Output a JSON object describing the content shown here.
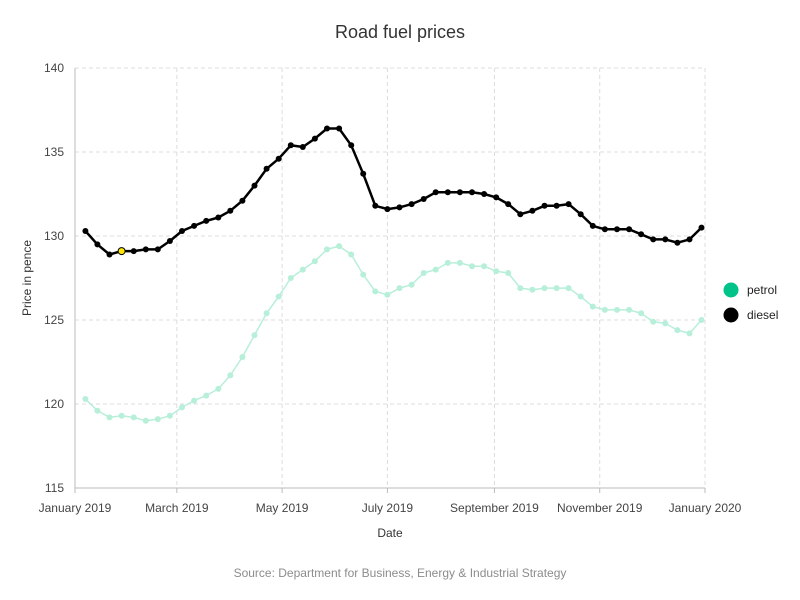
{
  "chart_data": {
    "type": "line",
    "title": "Road fuel prices",
    "xlabel": "Date",
    "ylabel": "Price in pence",
    "source": "Source: Department for Business, Energy & Industrial Strategy",
    "ylim": [
      115,
      140
    ],
    "yticks": [
      115,
      120,
      125,
      130,
      135,
      140
    ],
    "xlim": [
      "2019-01-01",
      "2020-01-01"
    ],
    "xticks": [
      {
        "date": "2019-01-01",
        "label": "January 2019"
      },
      {
        "date": "2019-03-01",
        "label": "March 2019"
      },
      {
        "date": "2019-05-01",
        "label": "May 2019"
      },
      {
        "date": "2019-07-01",
        "label": "July 2019"
      },
      {
        "date": "2019-09-01",
        "label": "September 2019"
      },
      {
        "date": "2019-11-01",
        "label": "November 2019"
      },
      {
        "date": "2020-01-01",
        "label": "January 2020"
      }
    ],
    "grid": true,
    "legend": "right",
    "x": [
      "2019-01-07",
      "2019-01-14",
      "2019-01-21",
      "2019-01-28",
      "2019-02-04",
      "2019-02-11",
      "2019-02-18",
      "2019-02-25",
      "2019-03-04",
      "2019-03-11",
      "2019-03-18",
      "2019-03-25",
      "2019-04-01",
      "2019-04-08",
      "2019-04-15",
      "2019-04-22",
      "2019-04-29",
      "2019-05-06",
      "2019-05-13",
      "2019-05-20",
      "2019-05-27",
      "2019-06-03",
      "2019-06-10",
      "2019-06-17",
      "2019-06-24",
      "2019-07-01",
      "2019-07-08",
      "2019-07-15",
      "2019-07-22",
      "2019-07-29",
      "2019-08-05",
      "2019-08-12",
      "2019-08-19",
      "2019-08-26",
      "2019-09-02",
      "2019-09-09",
      "2019-09-16",
      "2019-09-23",
      "2019-09-30",
      "2019-10-07",
      "2019-10-14",
      "2019-10-21",
      "2019-10-28",
      "2019-11-04",
      "2019-11-11",
      "2019-11-18",
      "2019-11-25",
      "2019-12-02",
      "2019-12-09",
      "2019-12-16",
      "2019-12-23",
      "2019-12-30"
    ],
    "series": [
      {
        "name": "petrol",
        "color": "#b7efd9",
        "legend_color": "#00c389",
        "values": [
          120.3,
          119.6,
          119.2,
          119.3,
          119.2,
          119.0,
          119.1,
          119.3,
          119.8,
          120.2,
          120.5,
          120.9,
          121.7,
          122.8,
          124.1,
          125.4,
          126.4,
          127.5,
          128.0,
          128.5,
          129.2,
          129.4,
          128.9,
          127.7,
          126.7,
          126.5,
          126.9,
          127.1,
          127.8,
          128.0,
          128.4,
          128.4,
          128.2,
          128.2,
          127.9,
          127.8,
          126.9,
          126.8,
          126.9,
          126.9,
          126.9,
          126.4,
          125.8,
          125.6,
          125.6,
          125.6,
          125.4,
          124.9,
          124.8,
          124.4,
          124.2,
          125.0
        ]
      },
      {
        "name": "diesel",
        "color": "#000000",
        "legend_color": "#000000",
        "highlight_index": 3,
        "highlight_color": "#ffe600",
        "values": [
          130.3,
          129.5,
          128.9,
          129.1,
          129.1,
          129.2,
          129.2,
          129.7,
          130.3,
          130.6,
          130.9,
          131.1,
          131.5,
          132.1,
          133.0,
          134.0,
          134.6,
          135.4,
          135.3,
          135.8,
          136.4,
          136.4,
          135.4,
          133.7,
          131.8,
          131.6,
          131.7,
          131.9,
          132.2,
          132.6,
          132.6,
          132.6,
          132.6,
          132.5,
          132.3,
          131.9,
          131.3,
          131.5,
          131.8,
          131.8,
          131.9,
          131.3,
          130.6,
          130.4,
          130.4,
          130.4,
          130.1,
          129.8,
          129.8,
          129.6,
          129.8,
          130.5
        ]
      }
    ]
  }
}
